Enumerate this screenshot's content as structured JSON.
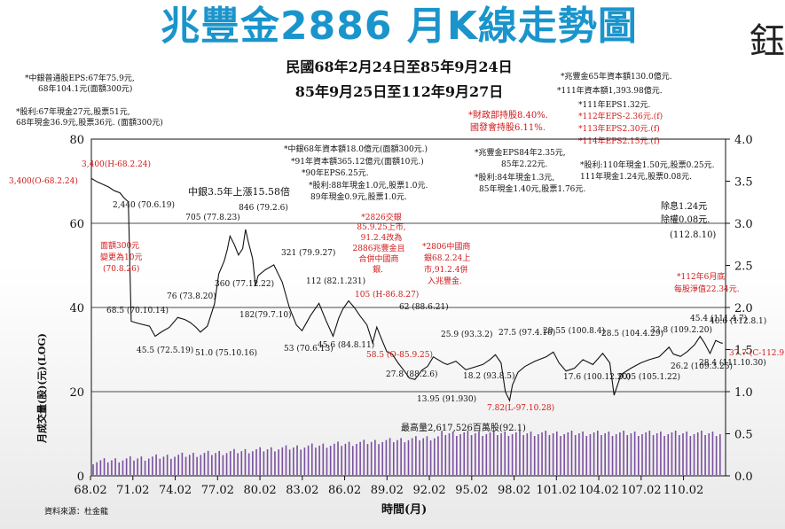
{
  "title": "兆豐金2886 月K線走勢圖",
  "period_line1": "民國68年2月24日至85年9月24日",
  "period_line2": "85年9月25日至112年9月27日",
  "left_notes": [
    "*中銀普通股EPS:67年75.9元,",
    "68年104.1元(面額300元)",
    "*股利:67年現金27元,股票51元,",
    "68年現金36.9元,股票36元. (面額300元)"
  ],
  "right_notes": [
    "*兆豐金65年資本額130.0億元.",
    "*111年資本額1,393.98億元.",
    "*111年EPS1.32元.",
    "*112年EPS-2.36元.(f)",
    "*113年EPS2.30元.(f)",
    "*114年EPS2.15元.(f)",
    "*股利:110年現金1.50元,股票0.25元.",
    "111年現金1.24元,股票0.08元."
  ],
  "mof_note": [
    "*財政部持股8.40%.",
    "國發會持股6.11%."
  ],
  "center_notes": [
    "*中銀68年資本額18.0億元(面額300元.)",
    "*91年資本額365.12億元(面額10元.)",
    "*90年EPS6.25元.",
    "*股利:88年現金1.0元,股票1.0元.",
    "89年現金0.9元,股票1.0元."
  ],
  "eps84_note": [
    "*兆豐金EPS84年2.35元,",
    "85年2.22元.",
    "*股利:84年現金1.3元,",
    "85年現金1.40元,股票1.76元."
  ],
  "rise_note": "中銀3.5年上漲15.58倍",
  "merge_note_1": [
    "*2826交銀",
    "85.9.25上市,",
    "91.2.4改為",
    "2886兆豐金且",
    "合併中國商",
    "銀."
  ],
  "merge_note_2": [
    "*2806中國商",
    "銀68.2.24上",
    "市,91.2.4併",
    "入兆豐金."
  ],
  "face_value_note": [
    "面額300元",
    "變更為10元",
    "(70.8.26)"
  ],
  "ex_dividend_note": [
    "除息1.24元",
    "除權0.08元.",
    "(112.8.10)"
  ],
  "nav_note": [
    "*112年6月底",
    "每股淨值22.34元."
  ],
  "volume_note": "最高量2,617,526百萬股(92.1)",
  "source": "資料來源：杜金龍",
  "corner_glyph": "鈺",
  "colors": {
    "price": "#111111",
    "volume": "#7a4fa0",
    "red_note": "#d01a1a",
    "title": "#1a95cc"
  },
  "chart_data": {
    "type": "line",
    "xlabel": "時間(月)",
    "ylabel": "月成交量(股)(元)(LOG)",
    "x_ticks": [
      "68.02",
      "71.02",
      "74.02",
      "77.02",
      "80.02",
      "83.02",
      "86.02",
      "89.02",
      "92.02",
      "95.02",
      "98.02",
      "101.02",
      "104.02",
      "107.02",
      "110.02"
    ],
    "xlim": [
      68.08,
      113.0
    ],
    "y_left_ticks": [
      80,
      60,
      40,
      20,
      0
    ],
    "y_right_ticks": [
      "4.0",
      "3.5",
      "3.0",
      "2.5",
      "2.0",
      "1.5",
      "1.0",
      "0.5",
      "0.0"
    ],
    "log_axis_range": [
      0.0,
      4.0
    ],
    "scale_type": "log price, gridlines at 20 / 40 / 60 on left scale",
    "series": [
      {
        "x": [
          68.1,
          68.5,
          68.9,
          69.3,
          69.7,
          70.1,
          70.4,
          70.7,
          70.9,
          71.5,
          72.2,
          72.6,
          73.1,
          73.6,
          74.2,
          74.7,
          75.1,
          75.5,
          75.8,
          76.3,
          76.8,
          77.1,
          77.5,
          77.7,
          77.9,
          78.2,
          78.5,
          78.8,
          79.0,
          79.2,
          79.5,
          79.7,
          79.9,
          80.4,
          81.0,
          81.6,
          82.1,
          82.6,
          83.0,
          83.6,
          84.2,
          84.7,
          85.2,
          85.6,
          85.9,
          86.3,
          86.7,
          87.1,
          87.6,
          88.0,
          88.3,
          88.5,
          89.0,
          89.4,
          89.8,
          90.2,
          90.6,
          91.0,
          91.5,
          91.9,
          92.3,
          93.0,
          93.3,
          93.9,
          94.6,
          95.2,
          95.8,
          96.3,
          96.7,
          97.1,
          97.4,
          97.7,
          97.9,
          98.3,
          98.8,
          99.5,
          100.3,
          100.8,
          101.2,
          101.7,
          102.3,
          102.9,
          103.6,
          104.3,
          104.8,
          105.1,
          105.6,
          106.3,
          107.0,
          107.6,
          108.3,
          109.0,
          109.3,
          109.8,
          110.3,
          110.8,
          111.2,
          111.5,
          111.9,
          112.3,
          112.7,
          112.8
        ],
        "y": [
          3400,
          3100,
          2900,
          2700,
          2440,
          2300,
          2000,
          1800,
          68.5,
          64,
          60,
          45.5,
          52,
          58,
          76,
          72,
          66,
          58,
          51,
          60,
          110,
          250,
          360,
          480,
          705,
          560,
          420,
          500,
          846,
          600,
          380,
          182,
          240,
          280,
          321,
          200,
          100,
          62,
          53,
          80,
          112,
          70,
          45.6,
          75,
          96,
          120,
          100,
          80,
          62,
          38,
          58.5,
          48,
          30,
          27.8,
          22,
          18,
          14.5,
          13.95,
          18,
          20,
          25.9,
          22,
          21,
          23,
          18.2,
          19.5,
          21,
          24,
          27.5,
          22,
          10,
          7.82,
          12,
          17,
          20,
          23,
          26,
          29.55,
          22,
          17.6,
          19,
          24,
          21,
          28.5,
          22,
          9.05,
          16,
          19,
          22,
          24,
          26,
          33.8,
          28,
          26.2,
          30,
          36,
          45.4,
          38,
          28.4,
          40.6,
          37.7,
          37.7
        ]
      }
    ],
    "annotations": [
      "3,400(H-68.2.24)",
      "3,400(O-68.2.24)",
      "2,440 (70.6.19)",
      "68.5 (70.10.14)",
      "45.5 (72.5.19)",
      "76 (73.8.20)",
      "51.0 (75.10.16)",
      "360 (77.12.22)",
      "705 (77.8.23)",
      "846 (79.2.6)",
      "182(79.7.10)",
      "321 (79.9.27)",
      "53 (70.6.13)",
      "112 (82.1.231)",
      "45.6 (84.8.11)",
      "58.5 (O-85.9.25)",
      "62 (88.6.21)",
      "27.8 (88.2.6)",
      "13.95 (91.930)",
      "25.9 (93.3.2)",
      "18.2 (93.8.5)",
      "27.5 (97.4.16)",
      "7.82(L-97.10.28)",
      "29.55 (100.8.4)",
      "17.6 (100.12.20)",
      "28.5 (104.4.29)",
      "9.05 (105.1.22)",
      "33.8 (109.2.20)",
      "45.4 (111.4.7)",
      "26.2 (109.3.25)",
      "28.4 (111.10.30)",
      "40.6 (112.8.1)",
      "37.7 (C-112.9.27)",
      "105 (H-86.8.27)"
    ],
    "volume_bars_max_label": "最高量2,617,526百萬股(92.1)"
  }
}
